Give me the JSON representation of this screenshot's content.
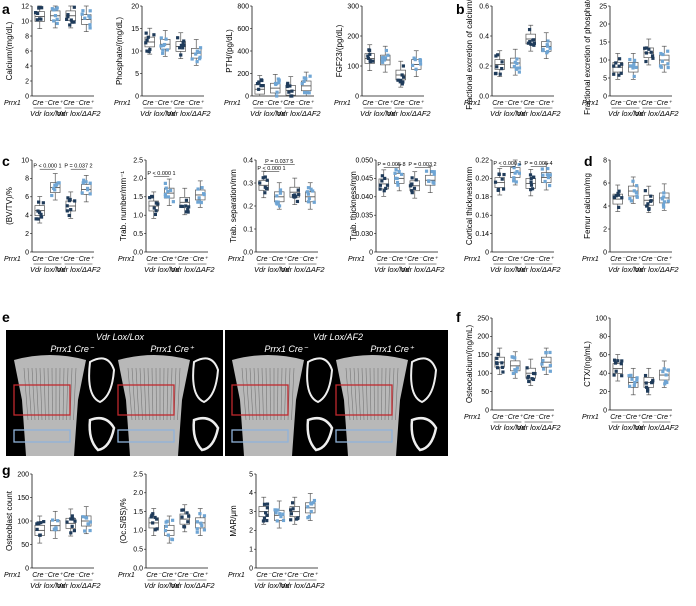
{
  "panel_letters": [
    "a",
    "b",
    "c",
    "d",
    "e",
    "f",
    "g"
  ],
  "row_label": "Prrx1",
  "cre_neg": "Cre⁻",
  "cre_pos": "Cre⁺",
  "group_labels": [
    "Vdr lox/lox",
    "Vdr lox/ΔAF2"
  ],
  "colors": {
    "dark": "#1f3b5a",
    "light": "#6fa5d4",
    "box": "#555555"
  },
  "micro_ct": {
    "group_titles": [
      "Vdr Lox/Lox",
      "Vdr Lox/AF2"
    ],
    "sub_labels": [
      "Prrx1 Cre⁻",
      "Prrx1 Cre⁺",
      "Prrx1 Cre⁻",
      "Prrx1 Cre⁺"
    ]
  },
  "chart_data": [
    {
      "id": "a1",
      "type": "box",
      "ylabel": "Calcium/(mg/dL)",
      "ylim": [
        0,
        12
      ],
      "yticks": [
        "0",
        "2",
        "4",
        "6",
        "8",
        "10",
        "12"
      ],
      "medians": [
        10.6,
        10.7,
        10.7,
        10.2
      ],
      "pvals": []
    },
    {
      "id": "a2",
      "type": "box",
      "ylabel": "Phosphate/(mg/dL)",
      "ylim": [
        0,
        20
      ],
      "yticks": [
        "0",
        "5",
        "10",
        "15",
        "20"
      ],
      "medians": [
        12.0,
        11.5,
        11.0,
        9.5
      ],
      "pvals": []
    },
    {
      "id": "a3",
      "type": "box",
      "ylabel": "PTH/(pg/dL)",
      "ylim": [
        0,
        800
      ],
      "yticks": [
        "0",
        "200",
        "400",
        "600",
        "800"
      ],
      "medians": [
        60,
        70,
        50,
        90
      ],
      "pvals": []
    },
    {
      "id": "a4",
      "type": "box",
      "ylabel": "FGF23/(pg/dL)",
      "ylim": [
        0,
        300
      ],
      "yticks": [
        "0",
        "100",
        "200",
        "300"
      ],
      "medians": [
        125,
        120,
        70,
        105
      ],
      "pvals": []
    },
    {
      "id": "b1",
      "type": "box",
      "ylabel": "Fractional excretion of calcium/%",
      "ylim": [
        0,
        0.6
      ],
      "yticks": [
        "0.0",
        "0.2",
        "0.4",
        "0.6"
      ],
      "medians": [
        0.21,
        0.22,
        0.38,
        0.33
      ],
      "pvals": []
    },
    {
      "id": "b2",
      "type": "box",
      "ylabel": "Fractional excretion of phosphate/%",
      "ylim": [
        0,
        25
      ],
      "yticks": [
        "0",
        "5",
        "10",
        "15",
        "20",
        "25"
      ],
      "medians": [
        8,
        8,
        12,
        10
      ],
      "pvals": []
    },
    {
      "id": "c1",
      "type": "box",
      "ylabel": "(BV/TV)/%",
      "ylim": [
        0,
        10
      ],
      "yticks": [
        "0",
        "2",
        "4",
        "6",
        "8",
        "10"
      ],
      "medians": [
        4.5,
        7.0,
        5.0,
        6.8
      ],
      "pvals": [
        {
          "text": "P < 0.000 1",
          "a": 0,
          "b": 1,
          "y": 9.0
        },
        {
          "text": "P = 0.037 2",
          "a": 2,
          "b": 3,
          "y": 9.0
        }
      ]
    },
    {
      "id": "c2",
      "type": "box",
      "ylabel": "Trab. number/mm⁻¹",
      "ylim": [
        0,
        2.5
      ],
      "yticks": [
        "0.0",
        "0.5",
        "1.0",
        "1.5",
        "2.0",
        "2.5"
      ],
      "medians": [
        1.25,
        1.6,
        1.35,
        1.55
      ],
      "pvals": [
        {
          "text": "P < 0.000 1",
          "a": 0,
          "b": 1,
          "y": 2.05
        }
      ]
    },
    {
      "id": "c3",
      "type": "box",
      "ylabel": "Trab. separation/mm",
      "ylim": [
        0,
        0.4
      ],
      "yticks": [
        "0.0",
        "0.1",
        "0.2",
        "0.3",
        "0.4"
      ],
      "medians": [
        0.29,
        0.24,
        0.26,
        0.24
      ],
      "pvals": [
        {
          "text": "P = 0.037 5",
          "a": 0,
          "b": 2,
          "y": 0.38
        },
        {
          "text": "P < 0.000 1",
          "a": 0,
          "b": 1,
          "y": 0.35
        }
      ]
    },
    {
      "id": "c4",
      "type": "box",
      "ylabel": "Trab. thickness/mm",
      "ylim": [
        0,
        0.05
      ],
      "yticks": [
        "0",
        "0.030",
        "0.035",
        "0.040",
        "0.045",
        "0.050"
      ],
      "medians": [
        0.037,
        0.04,
        0.036,
        0.039
      ],
      "pvals": [
        {
          "text": "P = 0.005 8",
          "a": 0,
          "b": 1,
          "y": 0.046
        },
        {
          "text": "P = 0.003 2",
          "a": 2,
          "b": 3,
          "y": 0.046
        }
      ]
    },
    {
      "id": "c5",
      "type": "box",
      "ylabel": "Cortical thickness/mm",
      "ylim": [
        0,
        0.22
      ],
      "yticks": [
        "0",
        "0.14",
        "0.16",
        "0.18",
        "0.20",
        "0.22"
      ],
      "medians": [
        0.166,
        0.19,
        0.164,
        0.178
      ],
      "pvals": [
        {
          "text": "P < 0.000 1",
          "a": 0,
          "b": 1,
          "y": 0.205
        },
        {
          "text": "P = 0.005 4",
          "a": 2,
          "b": 3,
          "y": 0.205
        }
      ]
    },
    {
      "id": "d1",
      "type": "box",
      "ylabel": "Femur calcium/mg",
      "ylim": [
        0,
        8
      ],
      "yticks": [
        "0",
        "2",
        "4",
        "6",
        "8"
      ],
      "medians": [
        4.6,
        5.3,
        4.5,
        4.7
      ],
      "pvals": []
    },
    {
      "id": "f1",
      "type": "box",
      "ylabel": "Osteocalcium/(ng/mL)",
      "ylim": [
        0,
        250
      ],
      "yticks": [
        "0",
        "50",
        "100",
        "150",
        "200",
        "250"
      ],
      "medians": [
        130,
        120,
        100,
        130
      ],
      "pvals": []
    },
    {
      "id": "f2",
      "type": "box",
      "ylabel": "CTX/(ng/mL)",
      "ylim": [
        0,
        100
      ],
      "yticks": [
        "0",
        "20",
        "40",
        "60",
        "80",
        "100"
      ],
      "medians": [
        45,
        30,
        30,
        38
      ],
      "pvals": []
    },
    {
      "id": "g1",
      "type": "box",
      "ylabel": "Osteoblast count",
      "ylim": [
        0,
        200
      ],
      "yticks": [
        "0",
        "50",
        "100",
        "150",
        "200"
      ],
      "medians": [
        80,
        90,
        95,
        100
      ],
      "pvals": []
    },
    {
      "id": "g2",
      "type": "box",
      "ylabel": "(Oc.S/BS)/%",
      "ylim": [
        0,
        2.5
      ],
      "yticks": [
        "0.0",
        "0.5",
        "1.0",
        "1.5",
        "2.0",
        "2.5"
      ],
      "medians": [
        1.2,
        1.0,
        1.3,
        1.2
      ],
      "pvals": []
    },
    {
      "id": "g3",
      "type": "box",
      "ylabel": "MAR/μm",
      "ylim": [
        0,
        5
      ],
      "yticks": [
        "0",
        "1",
        "2",
        "3",
        "4",
        "5"
      ],
      "medians": [
        3.0,
        2.8,
        3.0,
        3.2
      ],
      "pvals": []
    }
  ]
}
